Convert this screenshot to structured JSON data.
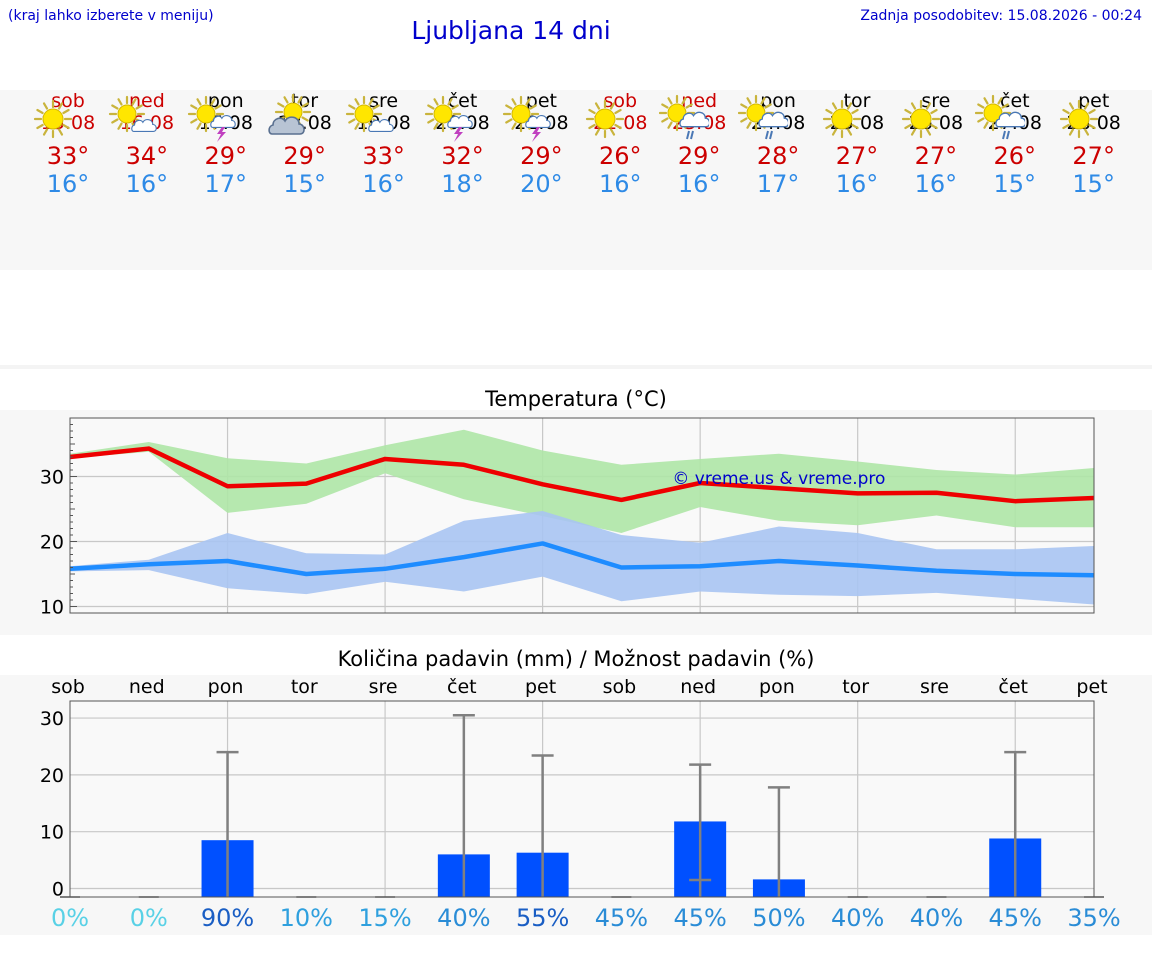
{
  "header": {
    "hint": "(kraj lahko izberete v meniju)",
    "title": "Ljubljana 14 dni",
    "updated": "Zadnja posodobitev: 15.08.2026 - 00:24"
  },
  "days": [
    {
      "name": "sob",
      "date": "15.08",
      "tmax": "33°",
      "tmin": "16°",
      "icon": "sunny-icon",
      "weekend": true
    },
    {
      "name": "ned",
      "date": "16.08",
      "tmax": "34°",
      "tmin": "16°",
      "icon": "sun-cloud-icon",
      "weekend": true
    },
    {
      "name": "pon",
      "date": "17.08",
      "tmax": "29°",
      "tmin": "17°",
      "icon": "sun-cloud-thunder-icon",
      "weekend": false
    },
    {
      "name": "tor",
      "date": "18.08",
      "tmax": "29°",
      "tmin": "15°",
      "icon": "sun-grey-cloud-icon",
      "weekend": false
    },
    {
      "name": "sre",
      "date": "19.08",
      "tmax": "33°",
      "tmin": "16°",
      "icon": "sun-cloud-icon",
      "weekend": false
    },
    {
      "name": "čet",
      "date": "20.08",
      "tmax": "32°",
      "tmin": "18°",
      "icon": "sun-cloud-thunder-icon",
      "weekend": false
    },
    {
      "name": "pet",
      "date": "21.08",
      "tmax": "29°",
      "tmin": "20°",
      "icon": "sun-cloud-thunder-icon",
      "weekend": false
    },
    {
      "name": "sob",
      "date": "22.08",
      "tmax": "26°",
      "tmin": "16°",
      "icon": "sunny-icon",
      "weekend": true
    },
    {
      "name": "ned",
      "date": "23.08",
      "tmax": "29°",
      "tmin": "16°",
      "icon": "sun-cloud-rain-icon",
      "weekend": true
    },
    {
      "name": "pon",
      "date": "24.08",
      "tmax": "28°",
      "tmin": "17°",
      "icon": "sun-cloud-rain-icon",
      "weekend": false
    },
    {
      "name": "tor",
      "date": "25.08",
      "tmax": "27°",
      "tmin": "16°",
      "icon": "sunny-icon",
      "weekend": false
    },
    {
      "name": "sre",
      "date": "26.08",
      "tmax": "27°",
      "tmin": "16°",
      "icon": "sunny-icon",
      "weekend": false
    },
    {
      "name": "čet",
      "date": "27.08",
      "tmax": "26°",
      "tmin": "15°",
      "icon": "sun-cloud-rain-icon",
      "weekend": false
    },
    {
      "name": "pet",
      "date": "28.08",
      "tmax": "27°",
      "tmin": "15°",
      "icon": "sunny-icon",
      "weekend": false
    }
  ],
  "colors": {
    "max_line": "#ee0000",
    "min_line": "#1e8cff",
    "max_band": "#aee6a6",
    "min_band": "#a9c4f2",
    "bar": "#0050ff",
    "errbar": "#808080"
  },
  "chart_data": [
    {
      "type": "line",
      "title": "Temperatura (°C)",
      "watermark": "© vreme.us & vreme.pro",
      "categories": [
        "sob",
        "ned",
        "pon",
        "tor",
        "sre",
        "čet",
        "pet",
        "sob",
        "ned",
        "pon",
        "tor",
        "sre",
        "čet",
        "pet"
      ],
      "ylim": [
        9,
        39
      ],
      "yticks": [
        10,
        20,
        30
      ],
      "series": [
        {
          "values": [
            33.0,
            34.3,
            28.5,
            28.9,
            32.7,
            31.8,
            28.8,
            26.4,
            29.0,
            28.2,
            27.4,
            27.5,
            26.2,
            26.7
          ],
          "band_low": [
            32.8,
            33.8,
            24.4,
            25.8,
            30.5,
            26.5,
            23.9,
            21.3,
            25.3,
            23.2,
            22.5,
            24.0,
            22.2,
            22.2
          ],
          "band_high": [
            33.5,
            35.3,
            32.8,
            32.0,
            34.8,
            37.2,
            34.0,
            31.8,
            32.7,
            33.5,
            32.3,
            31.0,
            30.3,
            31.3
          ]
        },
        {
          "values": [
            15.8,
            16.5,
            17.0,
            15.0,
            15.8,
            17.6,
            19.7,
            16.0,
            16.2,
            17.0,
            16.3,
            15.5,
            15.0,
            14.8
          ],
          "band_low": [
            15.4,
            15.6,
            12.8,
            11.9,
            13.8,
            12.3,
            14.6,
            10.8,
            12.3,
            11.8,
            11.6,
            12.1,
            11.2,
            10.3
          ],
          "band_high": [
            16.2,
            17.2,
            21.3,
            18.2,
            18.0,
            23.2,
            24.7,
            21.0,
            19.8,
            22.3,
            21.3,
            18.8,
            18.8,
            19.3
          ]
        }
      ]
    },
    {
      "type": "bar",
      "title": "Količina padavin (mm) / Možnost padavin (%)",
      "categories": [
        "sob",
        "ned",
        "pon",
        "tor",
        "sre",
        "čet",
        "pet",
        "sob",
        "ned",
        "pon",
        "tor",
        "sre",
        "čet",
        "pet"
      ],
      "ylim": [
        -1.5,
        33
      ],
      "yticks": [
        0,
        10,
        20,
        30
      ],
      "values": [
        0,
        0,
        8.5,
        0,
        0,
        6.0,
        6.3,
        0,
        11.8,
        1.6,
        0,
        0,
        8.8,
        0
      ],
      "err_low": [
        0,
        0,
        0,
        0,
        0,
        0,
        0,
        0,
        1.5,
        0,
        0,
        0,
        0,
        0
      ],
      "err_high": [
        0,
        0,
        24,
        0,
        0,
        30.5,
        23.4,
        0,
        21.8,
        17.8,
        0,
        0,
        24,
        0
      ],
      "chance": [
        "0%",
        "0%",
        "90%",
        "10%",
        "15%",
        "40%",
        "55%",
        "45%",
        "45%",
        "50%",
        "40%",
        "40%",
        "45%",
        "35%"
      ],
      "chance_colors": [
        "#59d1e6",
        "#59d1e6",
        "#1a5ec4",
        "#2fa0de",
        "#2fa0de",
        "#2a8cd6",
        "#1a5ec4",
        "#2a8cd6",
        "#2a8cd6",
        "#2a8cd6",
        "#2a8cd6",
        "#2a8cd6",
        "#2a8cd6",
        "#2a8cd6"
      ]
    }
  ]
}
